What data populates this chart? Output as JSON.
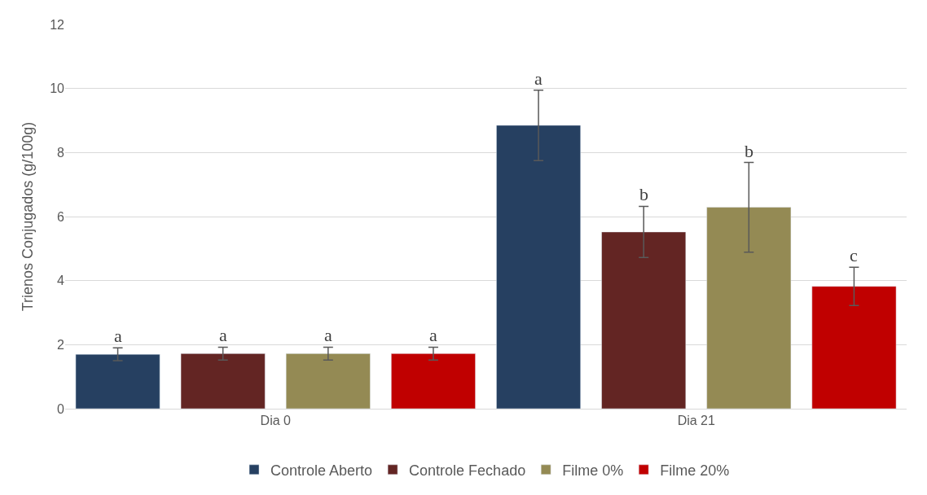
{
  "chart_data": {
    "type": "bar",
    "ylabel": "Trienos Conjugados (g/100g)",
    "categories": [
      "Dia 0",
      "Dia 21"
    ],
    "series": [
      {
        "name": "Controle Aberto",
        "color": "#264061",
        "values": [
          1.7,
          8.85
        ],
        "errors": [
          0.2,
          1.1
        ],
        "value_labels": [
          "a",
          "a"
        ]
      },
      {
        "name": "Controle Fechado",
        "color": "#632523",
        "values": [
          1.72,
          5.52
        ],
        "errors": [
          0.2,
          0.8
        ],
        "value_labels": [
          "a",
          "b"
        ]
      },
      {
        "name": "Filme 0%",
        "color": "#948A54",
        "values": [
          1.72,
          6.29
        ],
        "errors": [
          0.2,
          1.4
        ],
        "value_labels": [
          "a",
          "b"
        ]
      },
      {
        "name": "Filme 20%",
        "color": "#C00000",
        "values": [
          1.72,
          3.82
        ],
        "errors": [
          0.2,
          0.6
        ],
        "value_labels": [
          "a",
          "c"
        ]
      }
    ],
    "ylim": [
      0,
      12
    ],
    "yticks": [
      0,
      2,
      4,
      6,
      8,
      10,
      12
    ],
    "grid": "y",
    "legend": "bottom"
  }
}
